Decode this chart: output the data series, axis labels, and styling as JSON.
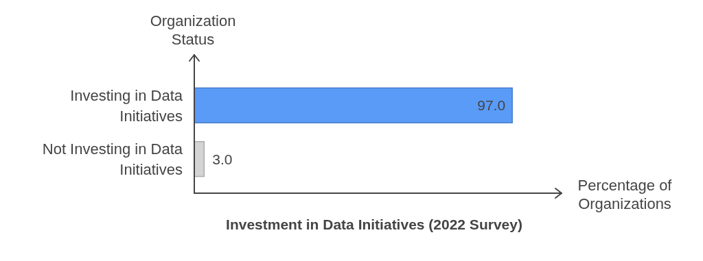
{
  "chart_data": {
    "type": "bar",
    "orientation": "horizontal",
    "title": "Investment in Data Initiatives (2022 Survey)",
    "xlabel": "Percentage of Organizations",
    "ylabel": "Organization Status",
    "categories": [
      "Investing in Data Initiatives",
      "Not Investing in Data Initiatives"
    ],
    "values": [
      97.0,
      3.0
    ],
    "colors": [
      "#5a9bf8",
      "#d4d4d4"
    ],
    "value_labels": [
      "97.0",
      "3.0"
    ]
  }
}
